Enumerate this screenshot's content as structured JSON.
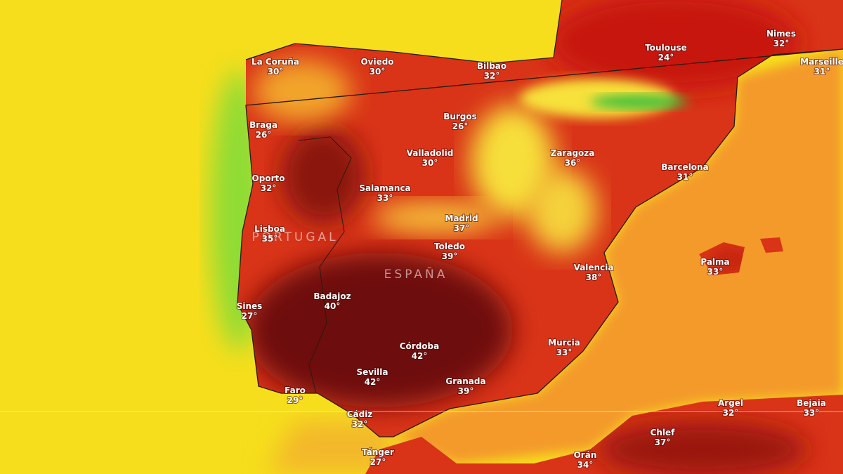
{
  "map": {
    "country_labels": [
      "PORTUGAL",
      "ESPAÑA"
    ],
    "cities": [
      {
        "name": "Toulouse",
        "temp": "24°"
      },
      {
        "name": "Nimes",
        "temp": "32°"
      },
      {
        "name": "Marseille",
        "temp": "31°"
      },
      {
        "name": "La Coruña",
        "temp": "30°"
      },
      {
        "name": "Oviedo",
        "temp": "30°"
      },
      {
        "name": "Bilbao",
        "temp": "32°"
      },
      {
        "name": "Burgos",
        "temp": "26°"
      },
      {
        "name": "Valladolid",
        "temp": "30°"
      },
      {
        "name": "Zaragoza",
        "temp": "36°"
      },
      {
        "name": "Barcelona",
        "temp": "31°"
      },
      {
        "name": "Braga",
        "temp": "26°"
      },
      {
        "name": "Oporto",
        "temp": "32°"
      },
      {
        "name": "Salamanca",
        "temp": "33°"
      },
      {
        "name": "Madrid",
        "temp": "37°"
      },
      {
        "name": "Toledo",
        "temp": "39°"
      },
      {
        "name": "Lisboa",
        "temp": "35°"
      },
      {
        "name": "Valencia",
        "temp": "38°"
      },
      {
        "name": "Palma",
        "temp": "33°"
      },
      {
        "name": "Badajoz",
        "temp": "40°"
      },
      {
        "name": "Sines",
        "temp": "27°"
      },
      {
        "name": "Córdoba",
        "temp": "42°"
      },
      {
        "name": "Murcia",
        "temp": "33°"
      },
      {
        "name": "Sevilla",
        "temp": "42°"
      },
      {
        "name": "Granada",
        "temp": "39°"
      },
      {
        "name": "Faro",
        "temp": "29°"
      },
      {
        "name": "Cádiz",
        "temp": "32°"
      },
      {
        "name": "Argel",
        "temp": "32°"
      },
      {
        "name": "Bejaia",
        "temp": "33°"
      },
      {
        "name": "Chlef",
        "temp": "37°"
      },
      {
        "name": "Tánger",
        "temp": "27°"
      },
      {
        "name": "Orán",
        "temp": "34°"
      }
    ]
  }
}
